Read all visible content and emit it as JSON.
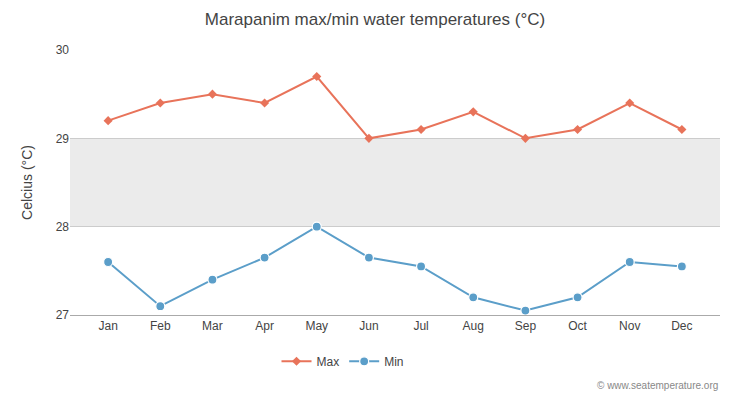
{
  "chart_data": {
    "type": "line",
    "title": "Marapanim max/min water temperatures (°C)",
    "y_label": "Celcius (°C)",
    "categories": [
      "Jan",
      "Feb",
      "Mar",
      "Apr",
      "May",
      "Jun",
      "Jul",
      "Aug",
      "Sep",
      "Oct",
      "Nov",
      "Dec"
    ],
    "series": [
      {
        "name": "Max",
        "color": "#e8735a",
        "marker": "diamond",
        "values": [
          29.2,
          29.4,
          29.5,
          29.4,
          29.7,
          29.0,
          29.1,
          29.3,
          29.0,
          29.1,
          29.4,
          29.1
        ]
      },
      {
        "name": "Min",
        "color": "#5b9ec9",
        "marker": "circle",
        "values": [
          27.6,
          27.1,
          27.4,
          27.65,
          28.0,
          27.65,
          27.55,
          27.2,
          27.05,
          27.2,
          27.6,
          27.55
        ]
      }
    ],
    "band": {
      "from": 28.0,
      "to": 29.0,
      "color": "#ebebeb"
    },
    "ylim": [
      27.0,
      30.0
    ],
    "yticks": [
      27,
      28,
      29,
      30
    ],
    "grid": true,
    "legend": "bottom",
    "annotations": [
      "© www.seatemperature.org"
    ]
  }
}
